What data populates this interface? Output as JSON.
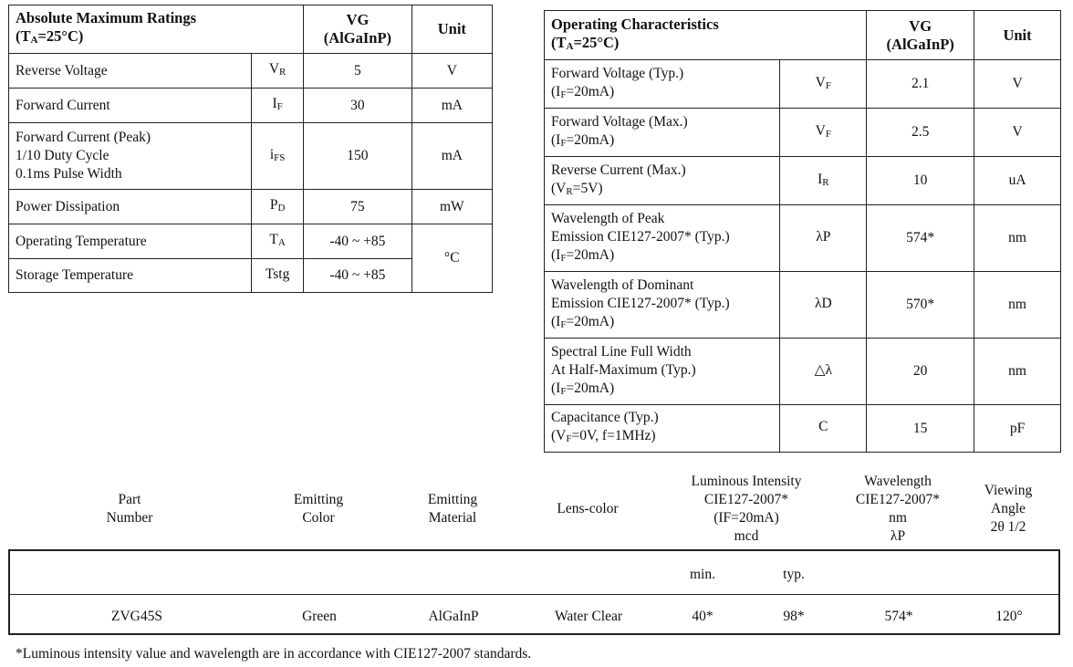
{
  "absolute_max": {
    "title": "Absolute Maximum Ratings",
    "cond_prefix": "(T",
    "cond_sub": "A",
    "cond_suffix": "=25°C)",
    "col_vg": "VG",
    "col_mat": "(AlGaInP)",
    "col_unit": "Unit",
    "rows": [
      {
        "param": "Reverse Voltage",
        "sym": "V",
        "sym_sub": "R",
        "value": "5",
        "unit": "V"
      },
      {
        "param": "Forward Current",
        "sym": "I",
        "sym_sub": "F",
        "value": "30",
        "unit": "mA"
      },
      {
        "param": "Forward Current (Peak)\n1/10 Duty Cycle\n0.1ms Pulse Width",
        "sym": "i",
        "sym_sub": "FS",
        "value": "150",
        "unit": "mA"
      },
      {
        "param": "Power Dissipation",
        "sym": "P",
        "sym_sub": "D",
        "value": "75",
        "unit": "mW"
      },
      {
        "param": "Operating Temperature",
        "sym": "T",
        "sym_sub": "A",
        "value": "-40 ~ +85",
        "unit": "°C"
      },
      {
        "param": "Storage Temperature",
        "sym": "Tstg",
        "sym_sub": "",
        "value": "-40 ~ +85"
      }
    ]
  },
  "operating": {
    "title": "Operating Characteristics",
    "cond_prefix": "(T",
    "cond_sub": "A",
    "cond_suffix": "=25°C)",
    "col_vg": "VG",
    "col_mat": "(AlGaInP)",
    "col_unit": "Unit",
    "rows": [
      {
        "param": "Forward Voltage (Typ.)",
        "cond_a": "(I",
        "cond_b": "F",
        "cond_c": "=20mA)",
        "sym": "V",
        "sym_sub": "F",
        "value": "2.1",
        "unit": "V"
      },
      {
        "param": "Forward Voltage (Max.)",
        "cond_a": "(I",
        "cond_b": "F",
        "cond_c": "=20mA)",
        "sym": "V",
        "sym_sub": "F",
        "value": "2.5",
        "unit": "V"
      },
      {
        "param": "Reverse Current (Max.)",
        "cond_a": "(V",
        "cond_b": "R",
        "cond_c": "=5V)",
        "sym": "I",
        "sym_sub": "R",
        "value": "10",
        "unit": "uA"
      },
      {
        "param": "Wavelength of Peak\nEmission  CIE127-2007* (Typ.)",
        "cond_a": "(I",
        "cond_b": "F",
        "cond_c": "=20mA)",
        "sym": "λP",
        "sym_sub": "",
        "value": "574*",
        "unit": "nm"
      },
      {
        "param": "Wavelength of Dominant\nEmission  CIE127-2007* (Typ.)",
        "cond_a": "(I",
        "cond_b": "F",
        "cond_c": "=20mA)",
        "sym": "λD",
        "sym_sub": "",
        "value": "570*",
        "unit": "nm"
      },
      {
        "param": "Spectral Line Full Width\nAt Half-Maximum (Typ.)",
        "cond_a": "(I",
        "cond_b": "F",
        "cond_c": "=20mA)",
        "sym": "△λ",
        "sym_sub": "",
        "value": "20",
        "unit": "nm"
      },
      {
        "param": "Capacitance (Typ.)",
        "cond_a": "(V",
        "cond_b": "F",
        "cond_c": "=0V, f=1MHz)",
        "sym": "C",
        "sym_sub": "",
        "value": "15",
        "unit": "pF"
      }
    ]
  },
  "spec_table": {
    "headers": {
      "part": "Part\nNumber",
      "color": "Emitting\nColor",
      "material": "Emitting\nMaterial",
      "lens": "Lens-color",
      "intensity": "Luminous Intensity\nCIE127-2007*\n(IF=20mA)\nmcd",
      "wavelength": "Wavelength\nCIE127-2007*\nnm\nλP",
      "angle": "Viewing\nAngle\n2θ 1/2"
    },
    "sub_min": "min.",
    "sub_typ": "typ.",
    "row": {
      "part": "ZVG45S",
      "color": "Green",
      "material": "AlGaInP",
      "lens": "Water Clear",
      "min": "40*",
      "typ": "98*",
      "wavelength": "574*",
      "angle": "120°"
    }
  },
  "footnote": "*Luminous intensity value and wavelength are in accordance with CIE127-2007 standards."
}
